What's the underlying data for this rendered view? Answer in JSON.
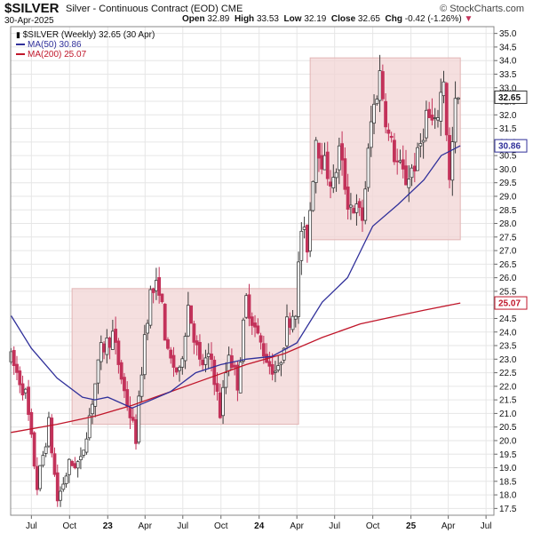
{
  "header": {
    "symbol": "$SILVER",
    "description": "Silver - Continuous Contract (EOD)",
    "exchange": "CME",
    "date": "30-Apr-2025",
    "open_label": "Open",
    "open": "32.89",
    "high_label": "High",
    "high": "33.53",
    "low_label": "Low",
    "low": "32.19",
    "close_label": "Close",
    "close": "32.65",
    "chg_label": "Chg",
    "chg": "-0.42 (-1.26%)",
    "brand": "© StockCharts.com"
  },
  "legend": {
    "price": "$SILVER (Weekly) 32.65 (30 Apr)",
    "ma50": "MA(50) 30.86",
    "ma200": "MA(200) 25.07"
  },
  "chart_data": {
    "type": "candlestick",
    "ylim": [
      17.25,
      35.25
    ],
    "y_ticks": [
      "17.5",
      "18.0",
      "18.5",
      "19.0",
      "19.5",
      "20.0",
      "20.5",
      "21.0",
      "21.5",
      "22.0",
      "22.5",
      "23.0",
      "23.5",
      "24.0",
      "24.5",
      "25.0",
      "25.5",
      "26.0",
      "26.5",
      "27.0",
      "27.5",
      "28.0",
      "28.5",
      "29.0",
      "29.5",
      "30.0",
      "30.5",
      "31.0",
      "31.5",
      "32.0",
      "32.5",
      "33.0",
      "33.5",
      "34.0",
      "34.5",
      "35.0"
    ],
    "x_ticks": [
      {
        "label": "Jul",
        "date": "2022-07-01"
      },
      {
        "label": "Oct",
        "date": "2022-10-01"
      },
      {
        "label": "23",
        "date": "2023-01-01"
      },
      {
        "label": "Apr",
        "date": "2023-04-01"
      },
      {
        "label": "Jul",
        "date": "2023-07-01"
      },
      {
        "label": "Oct",
        "date": "2023-10-01"
      },
      {
        "label": "24",
        "date": "2024-01-01"
      },
      {
        "label": "Apr",
        "date": "2024-04-01"
      },
      {
        "label": "Jul",
        "date": "2024-07-01"
      },
      {
        "label": "Oct",
        "date": "2024-10-01"
      },
      {
        "label": "25",
        "date": "2025-01-01"
      },
      {
        "label": "Apr",
        "date": "2025-04-01"
      },
      {
        "label": "Jul",
        "date": "2025-07-01"
      }
    ],
    "x_range": [
      "2022-05-12",
      "2025-07-20"
    ],
    "price_path": [
      [
        "2022-05-13",
        23.0
      ],
      [
        "2022-06-17",
        21.7
      ],
      [
        "2022-07-15",
        18.3
      ],
      [
        "2022-08-12",
        20.6
      ],
      [
        "2022-09-02",
        17.8
      ],
      [
        "2022-09-30",
        19.1
      ],
      [
        "2022-10-28",
        19.2
      ],
      [
        "2022-11-25",
        21.5
      ],
      [
        "2022-12-16",
        23.3
      ],
      [
        "2023-01-13",
        23.9
      ],
      [
        "2023-02-10",
        21.8
      ],
      [
        "2023-03-10",
        20.1
      ],
      [
        "2023-03-31",
        23.9
      ],
      [
        "2023-04-14",
        25.4
      ],
      [
        "2023-05-05",
        25.7
      ],
      [
        "2023-05-26",
        23.1
      ],
      [
        "2023-06-23",
        22.4
      ],
      [
        "2023-07-14",
        25.0
      ],
      [
        "2023-08-11",
        22.8
      ],
      [
        "2023-09-08",
        23.0
      ],
      [
        "2023-09-29",
        21.0
      ],
      [
        "2023-10-20",
        23.3
      ],
      [
        "2023-11-10",
        22.1
      ],
      [
        "2023-12-01",
        25.2
      ],
      [
        "2023-12-29",
        23.8
      ],
      [
        "2024-01-26",
        22.8
      ],
      [
        "2024-02-16",
        22.5
      ],
      [
        "2024-03-08",
        24.3
      ],
      [
        "2024-03-29",
        24.9
      ],
      [
        "2024-04-12",
        27.8
      ],
      [
        "2024-04-26",
        27.2
      ],
      [
        "2024-05-17",
        31.2
      ],
      [
        "2024-05-31",
        30.4
      ],
      [
        "2024-06-28",
        29.4
      ],
      [
        "2024-07-12",
        30.7
      ],
      [
        "2024-08-02",
        28.8
      ],
      [
        "2024-08-16",
        28.6
      ],
      [
        "2024-09-06",
        28.2
      ],
      [
        "2024-09-27",
        31.7
      ],
      [
        "2024-10-18",
        33.5
      ],
      [
        "2024-11-08",
        31.2
      ],
      [
        "2024-11-29",
        30.2
      ],
      [
        "2024-12-20",
        29.6
      ],
      [
        "2025-01-17",
        30.4
      ],
      [
        "2025-02-07",
        32.0
      ],
      [
        "2025-02-28",
        31.5
      ],
      [
        "2025-03-21",
        33.4
      ],
      [
        "2025-04-04",
        29.5
      ],
      [
        "2025-04-18",
        32.3
      ],
      [
        "2025-04-30",
        32.65
      ]
    ],
    "ma50": [
      [
        "2022-05-13",
        24.6
      ],
      [
        "2022-07-01",
        23.4
      ],
      [
        "2022-09-01",
        22.3
      ],
      [
        "2022-11-01",
        21.6
      ],
      [
        "2022-12-01",
        21.5
      ],
      [
        "2023-01-01",
        21.6
      ],
      [
        "2023-03-01",
        21.2
      ],
      [
        "2023-04-01",
        21.4
      ],
      [
        "2023-06-01",
        21.8
      ],
      [
        "2023-08-01",
        22.5
      ],
      [
        "2023-10-01",
        22.8
      ],
      [
        "2023-12-01",
        23.0
      ],
      [
        "2024-02-01",
        23.1
      ],
      [
        "2024-04-01",
        23.6
      ],
      [
        "2024-06-01",
        25.1
      ],
      [
        "2024-08-01",
        26.0
      ],
      [
        "2024-10-01",
        27.9
      ],
      [
        "2024-12-01",
        28.7
      ],
      [
        "2025-02-01",
        29.6
      ],
      [
        "2025-03-15",
        30.5
      ],
      [
        "2025-04-30",
        30.86
      ]
    ],
    "ma200": [
      [
        "2022-05-13",
        20.3
      ],
      [
        "2022-09-01",
        20.6
      ],
      [
        "2022-12-01",
        20.9
      ],
      [
        "2023-03-01",
        21.3
      ],
      [
        "2023-06-01",
        21.8
      ],
      [
        "2023-09-01",
        22.3
      ],
      [
        "2023-12-01",
        22.8
      ],
      [
        "2024-03-01",
        23.2
      ],
      [
        "2024-06-01",
        23.8
      ],
      [
        "2024-09-01",
        24.3
      ],
      [
        "2024-12-01",
        24.6
      ],
      [
        "2025-02-01",
        24.8
      ],
      [
        "2025-04-30",
        25.07
      ]
    ],
    "ranges": [
      {
        "start": "2022-10-07",
        "end": "2024-04-05",
        "low": 20.6,
        "high": 25.6
      },
      {
        "start": "2024-05-03",
        "end": "2025-04-30",
        "low": 27.4,
        "high": 34.1
      }
    ],
    "current_price": "32.65",
    "ma50_last": "30.86",
    "ma200_last": "25.07",
    "colors": {
      "up": "#3a3a3a",
      "down": "#c3325a",
      "ma50": "#30309a",
      "ma200": "#c0162a",
      "range_fill": "#f2d4d4",
      "range_stroke": "#e2b4b4",
      "grid": "#e6e6e6",
      "price_tag": "#111111"
    }
  }
}
